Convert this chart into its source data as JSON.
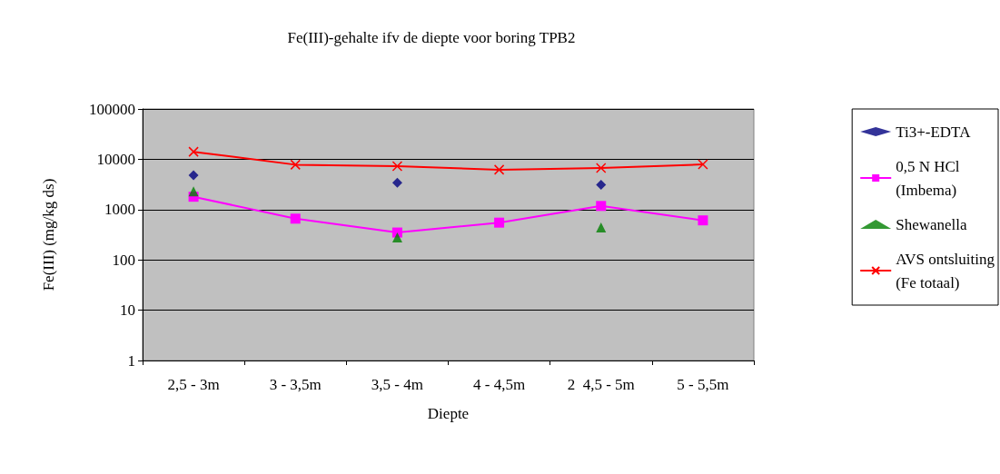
{
  "chart_data": {
    "type": "line",
    "title": "Fe(III)-gehalte ifv de diepte voor boring TPB2",
    "xlabel": "Diepte",
    "ylabel": "Fe(III) (mg/kg ds)",
    "categories": [
      "2,5 - 3m",
      "3 - 3,5m",
      "3,5 - 4m",
      "4 - 4,5m",
      "2  4,5 - 5m",
      "5 - 5,5m"
    ],
    "series": [
      {
        "name": "Ti3+-EDTA",
        "type": "scatter",
        "marker": "diamond",
        "color": "#000080",
        "values": [
          4800,
          null,
          3400,
          null,
          3100,
          null
        ]
      },
      {
        "name": "0,5 N HCl\n(Imbema)",
        "type": "line",
        "marker": "square",
        "color": "#ff00ff",
        "values": [
          1800,
          660,
          350,
          550,
          1180,
          610
        ]
      },
      {
        "name": "Shewanella",
        "type": "scatter",
        "marker": "triangle",
        "color": "#008000",
        "values": [
          2300,
          null,
          280,
          null,
          440,
          null
        ]
      },
      {
        "name": "AVS ontsluiting\n(Fe totaal)",
        "type": "line",
        "marker": "cross",
        "color": "#ff0000",
        "values": [
          14100,
          7800,
          7300,
          6200,
          6700,
          7900
        ]
      }
    ],
    "log": "y",
    "ylim": [
      1,
      100000
    ],
    "yticks": [
      1,
      10,
      100,
      1000,
      10000,
      100000
    ],
    "grid": "y",
    "legend": "right"
  }
}
